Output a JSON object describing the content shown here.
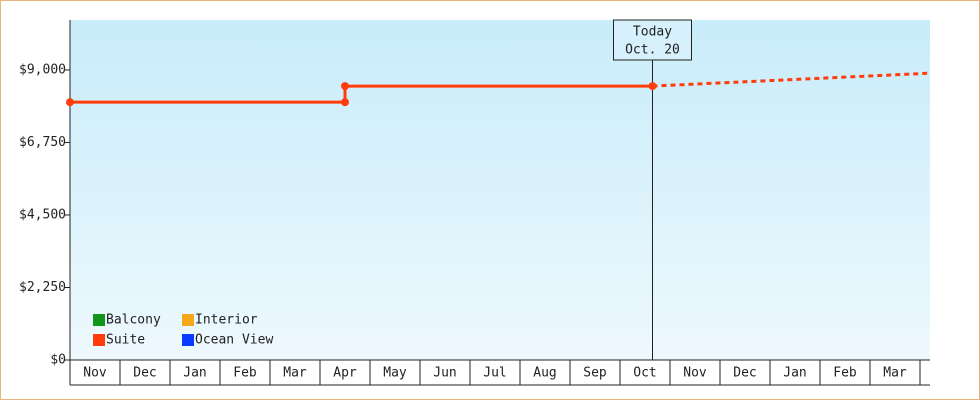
{
  "chart_data": {
    "type": "line",
    "categories": [
      "Nov",
      "Dec",
      "Jan",
      "Feb",
      "Mar",
      "Apr",
      "May",
      "Jun",
      "Jul",
      "Aug",
      "Sep",
      "Oct",
      "Nov",
      "Dec",
      "Jan",
      "Feb",
      "Mar"
    ],
    "xlim": [
      0,
      17.2
    ],
    "ylim": [
      0,
      10550
    ],
    "yticks": [
      {
        "value": 0,
        "label": "$0"
      },
      {
        "value": 2250,
        "label": "$2,250"
      },
      {
        "value": 4500,
        "label": "$4,500"
      },
      {
        "value": 6750,
        "label": "$6,750"
      },
      {
        "value": 9000,
        "label": "$9,000"
      }
    ],
    "series": [
      {
        "name": "Balcony",
        "color": "#11951a",
        "x": [],
        "values": []
      },
      {
        "name": "Suite",
        "color": "#ff3c0a",
        "x": [
          0,
          5.5,
          5.5,
          11.65
        ],
        "values": [
          8000,
          8000,
          8500,
          8500
        ],
        "projected_x": [
          11.65,
          17.2
        ],
        "projected_values": [
          8500,
          8900
        ]
      },
      {
        "name": "Interior",
        "color": "#f5a91a",
        "x": [],
        "values": []
      },
      {
        "name": "Ocean View",
        "color": "#0a3cff",
        "x": [],
        "values": []
      }
    ],
    "today": {
      "x": 11.65,
      "label": "Today",
      "date": "Oct. 20"
    }
  }
}
